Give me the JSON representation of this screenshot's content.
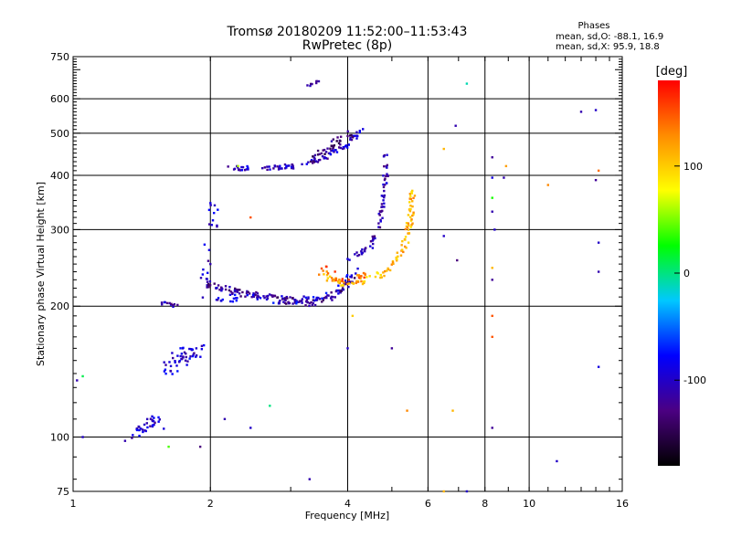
{
  "chart_data": {
    "type": "scatter",
    "title": "Tromsø 20180209 11:52:00–11:53:43",
    "subtitle": "RwPretec (8p)",
    "legend_box": {
      "title": "Phases",
      "line_o": "mean, sd,O: -88.1, 16.9",
      "line_x": "mean, sd,X:  95.9, 18.8"
    },
    "xlabel": "Frequency [MHz]",
    "ylabel": "Stationary phase Virtual Height [km]",
    "x_scale": "log",
    "y_scale": "log",
    "xlim": [
      1,
      16
    ],
    "ylim": [
      75,
      750
    ],
    "x_ticks": [
      {
        "value": 1,
        "label": "1"
      },
      {
        "value": 2,
        "label": "2"
      },
      {
        "value": 4,
        "label": "4"
      },
      {
        "value": 6,
        "label": "6"
      },
      {
        "value": 8,
        "label": "8"
      },
      {
        "value": 10,
        "label": "10"
      },
      {
        "value": 16,
        "label": "16"
      }
    ],
    "x_grid": [
      2,
      4,
      6,
      8,
      10
    ],
    "y_ticks": [
      {
        "value": 75,
        "label": "75"
      },
      {
        "value": 100,
        "label": "100"
      },
      {
        "value": 200,
        "label": "200"
      },
      {
        "value": 300,
        "label": "300"
      },
      {
        "value": 400,
        "label": "400"
      },
      {
        "value": 500,
        "label": "500"
      },
      {
        "value": 600,
        "label": "600"
      },
      {
        "value": 750,
        "label": "750"
      }
    ],
    "y_grid": [
      100,
      200,
      300,
      400,
      500,
      600
    ],
    "colorbar": {
      "label": "[deg]",
      "range": [
        -180,
        180
      ],
      "ticks": [
        {
          "value": 100,
          "label": "100"
        },
        {
          "value": 0,
          "label": "0"
        },
        {
          "value": -100,
          "label": "-100"
        }
      ],
      "colors": [
        "#000000",
        "#4b0082",
        "#0000ff",
        "#00c8ff",
        "#00ff00",
        "#ffff00",
        "#ff8c00",
        "#ff0000"
      ]
    },
    "traces": [
      {
        "segments": [
          [
            [
              1.55,
              203
            ],
            [
              1.7,
              200
            ]
          ]
        ],
        "n": 12,
        "color_deg": -110,
        "spread": 0.012
      },
      {
        "segments": [
          [
            [
              1.35,
              100
            ],
            [
              1.5,
              110
            ],
            [
              1.6,
              106
            ]
          ]
        ],
        "n": 34,
        "color_deg": -100,
        "spread": 0.025
      },
      {
        "segments": [
          [
            [
              1.6,
              140
            ],
            [
              1.75,
              155
            ],
            [
              1.9,
              160
            ]
          ]
        ],
        "n": 50,
        "color_deg": -95,
        "spread": 0.04
      },
      {
        "segments": [
          [
            [
              1.95,
              210
            ],
            [
              2.0,
              280
            ],
            [
              2.05,
              350
            ]
          ]
        ],
        "n": 22,
        "color_deg": -100,
        "spread": 0.03
      },
      {
        "segments": [
          [
            [
              1.98,
              225
            ],
            [
              2.3,
              215
            ],
            [
              2.8,
              208
            ],
            [
              3.3,
              203
            ],
            [
              3.7,
              210
            ],
            [
              4.1,
              230
            ]
          ]
        ],
        "n": 140,
        "color_deg": -120,
        "spread": 0.018
      },
      {
        "segments": [
          [
            [
              1.98,
              210
            ],
            [
              2.5,
              208
            ],
            [
              3.2,
              206
            ],
            [
              3.8,
              215
            ],
            [
              4.2,
              245
            ]
          ]
        ],
        "n": 60,
        "color_deg": -90,
        "spread": 0.02
      },
      {
        "segments": [
          [
            [
              2.1,
              415
            ],
            [
              2.6,
              415
            ],
            [
              3.1,
              420
            ],
            [
              3.6,
              440
            ],
            [
              4.0,
              470
            ],
            [
              4.3,
              510
            ]
          ]
        ],
        "n": 90,
        "color_deg": -100,
        "spread": 0.012
      },
      {
        "segments": [
          [
            [
              3.3,
              430
            ],
            [
              3.7,
              470
            ],
            [
              4.1,
              500
            ]
          ]
        ],
        "n": 40,
        "color_deg": -130,
        "spread": 0.02
      },
      {
        "segments": [
          [
            [
              4.0,
              255
            ],
            [
              4.5,
              275
            ],
            [
              4.7,
              310
            ],
            [
              4.85,
              400
            ],
            [
              4.85,
              450
            ]
          ]
        ],
        "n": 70,
        "color_deg": -110,
        "spread": 0.012
      },
      {
        "segments": [
          [
            [
              3.5,
              235
            ],
            [
              3.9,
              225
            ],
            [
              4.3,
              228
            ],
            [
              4.8,
              238
            ],
            [
              5.3,
              270
            ],
            [
              5.5,
              320
            ],
            [
              5.55,
              370
            ]
          ]
        ],
        "n": 110,
        "color_deg": 110,
        "spread": 0.015
      },
      {
        "segments": [
          [
            [
              3.5,
              245
            ],
            [
              4.0,
              225
            ],
            [
              4.4,
              240
            ]
          ]
        ],
        "n": 25,
        "color_deg": 140,
        "spread": 0.02
      },
      {
        "segments": [
          [
            [
              3.25,
              640
            ],
            [
              3.45,
              660
            ]
          ]
        ],
        "n": 8,
        "color_deg": -120,
        "spread": 0.006
      }
    ],
    "scatter_points": [
      {
        "x": 1.05,
        "y": 100,
        "deg": -100
      },
      {
        "x": 1.02,
        "y": 135,
        "deg": -110
      },
      {
        "x": 1.05,
        "y": 138,
        "deg": 10
      },
      {
        "x": 1.3,
        "y": 98,
        "deg": -110
      },
      {
        "x": 1.62,
        "y": 95,
        "deg": 40
      },
      {
        "x": 1.9,
        "y": 95,
        "deg": -130
      },
      {
        "x": 2.15,
        "y": 110,
        "deg": -110
      },
      {
        "x": 2.45,
        "y": 105,
        "deg": -100
      },
      {
        "x": 2.7,
        "y": 118,
        "deg": 0
      },
      {
        "x": 3.3,
        "y": 80,
        "deg": -110
      },
      {
        "x": 4.0,
        "y": 160,
        "deg": -100
      },
      {
        "x": 5.0,
        "y": 160,
        "deg": -120
      },
      {
        "x": 4.1,
        "y": 190,
        "deg": 100
      },
      {
        "x": 5.4,
        "y": 115,
        "deg": 130
      },
      {
        "x": 6.5,
        "y": 75,
        "deg": 110
      },
      {
        "x": 7.3,
        "y": 75,
        "deg": -100
      },
      {
        "x": 6.5,
        "y": 460,
        "deg": 110
      },
      {
        "x": 6.9,
        "y": 520,
        "deg": -110
      },
      {
        "x": 7.3,
        "y": 650,
        "deg": -10
      },
      {
        "x": 6.95,
        "y": 255,
        "deg": -130
      },
      {
        "x": 6.5,
        "y": 290,
        "deg": -100
      },
      {
        "x": 6.8,
        "y": 115,
        "deg": 110
      },
      {
        "x": 8.3,
        "y": 440,
        "deg": -120
      },
      {
        "x": 8.3,
        "y": 395,
        "deg": -90
      },
      {
        "x": 8.3,
        "y": 355,
        "deg": 30
      },
      {
        "x": 8.3,
        "y": 330,
        "deg": -110
      },
      {
        "x": 8.4,
        "y": 300,
        "deg": -100
      },
      {
        "x": 8.3,
        "y": 245,
        "deg": 110
      },
      {
        "x": 8.3,
        "y": 230,
        "deg": -120
      },
      {
        "x": 8.3,
        "y": 190,
        "deg": 150
      },
      {
        "x": 8.3,
        "y": 170,
        "deg": 150
      },
      {
        "x": 8.3,
        "y": 105,
        "deg": -120
      },
      {
        "x": 8.8,
        "y": 395,
        "deg": -110
      },
      {
        "x": 8.9,
        "y": 420,
        "deg": 120
      },
      {
        "x": 11.0,
        "y": 380,
        "deg": 130
      },
      {
        "x": 11.5,
        "y": 88,
        "deg": -100
      },
      {
        "x": 13.0,
        "y": 560,
        "deg": -110
      },
      {
        "x": 14.0,
        "y": 565,
        "deg": -100
      },
      {
        "x": 14.0,
        "y": 390,
        "deg": -120
      },
      {
        "x": 14.2,
        "y": 410,
        "deg": 140
      },
      {
        "x": 14.2,
        "y": 280,
        "deg": -100
      },
      {
        "x": 14.2,
        "y": 240,
        "deg": -110
      },
      {
        "x": 14.2,
        "y": 145,
        "deg": -90
      },
      {
        "x": 2.3,
        "y": 420,
        "deg": 60
      },
      {
        "x": 2.45,
        "y": 320,
        "deg": 150
      },
      {
        "x": 2.0,
        "y": 250,
        "deg": -110
      }
    ]
  }
}
